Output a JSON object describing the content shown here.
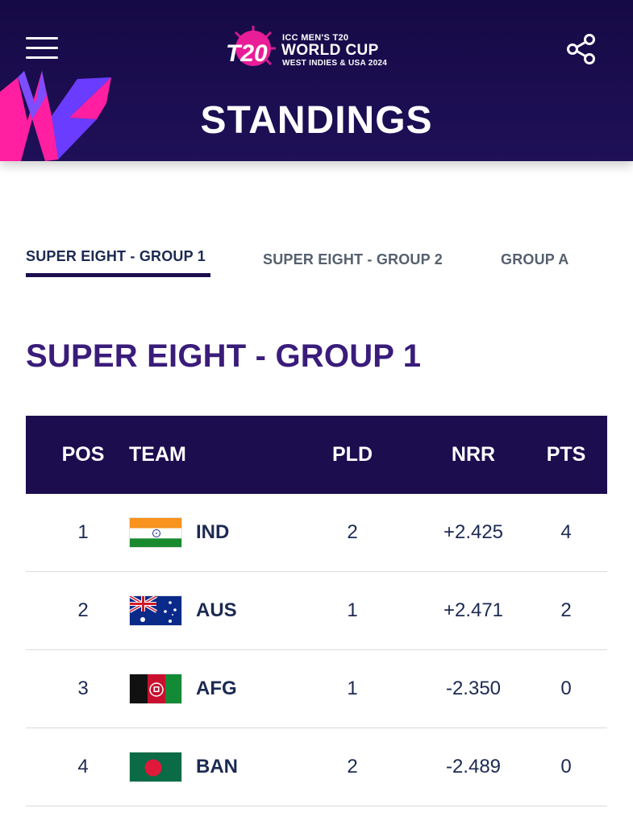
{
  "header": {
    "logo": {
      "line1": "ICC MEN'S T20",
      "line2": "WORLD CUP",
      "line3": "WEST INDIES & USA 2024"
    },
    "title": "STANDINGS",
    "colors": {
      "navy": "#1c0d4f",
      "pink": "#ff1fa0",
      "purple": "#6a3cff"
    }
  },
  "tabs": [
    {
      "label": "SUPER EIGHT - GROUP 1",
      "active": true
    },
    {
      "label": "SUPER EIGHT - GROUP 2",
      "active": false
    },
    {
      "label": "GROUP A",
      "active": false
    }
  ],
  "section_title": "SUPER EIGHT - GROUP 1",
  "table": {
    "columns": {
      "pos": "POS",
      "team": "TEAM",
      "pld": "PLD",
      "nrr": "NRR",
      "pts": "PTS"
    },
    "rows": [
      {
        "pos": "1",
        "code": "IND",
        "flag": "india-flag-icon",
        "pld": "2",
        "nrr": "+2.425",
        "pts": "4"
      },
      {
        "pos": "2",
        "code": "AUS",
        "flag": "australia-flag-icon",
        "pld": "1",
        "nrr": "+2.471",
        "pts": "2"
      },
      {
        "pos": "3",
        "code": "AFG",
        "flag": "afghanistan-flag-icon",
        "pld": "1",
        "nrr": "-2.350",
        "pts": "0"
      },
      {
        "pos": "4",
        "code": "BAN",
        "flag": "bangladesh-flag-icon",
        "pld": "2",
        "nrr": "-2.489",
        "pts": "0"
      }
    ]
  },
  "icons": [
    "menu-icon",
    "share-icon",
    "t20-logo-icon"
  ]
}
